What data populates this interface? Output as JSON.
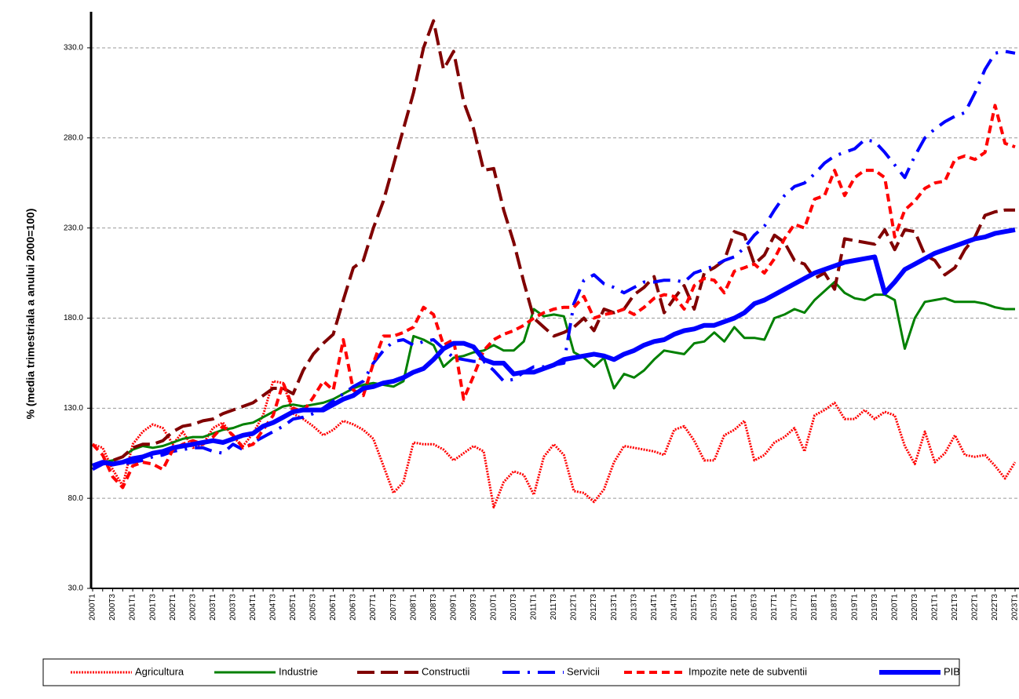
{
  "chart_data": {
    "type": "line",
    "ylabel": "% (media trimestriala a anului 2000=100)",
    "categories": [
      "2000T1",
      null,
      "2000T3",
      null,
      "2001T1",
      null,
      "2001T3",
      null,
      "2002T1",
      null,
      "2002T3",
      null,
      "2003T1",
      null,
      "2003T3",
      null,
      "2004T1",
      null,
      "2004T3",
      null,
      "2005T1",
      null,
      "2005T3",
      null,
      "2006T1",
      null,
      "2006T3",
      null,
      "2007T1",
      null,
      "2007T3",
      null,
      "2008T1",
      null,
      "2008T3",
      null,
      "2009T1",
      null,
      "2009T3",
      null,
      "2010T1",
      null,
      "2010T3",
      null,
      "2011T1",
      null,
      "2011T3",
      null,
      "2012T1",
      null,
      "2012T3",
      null,
      "2013T1",
      null,
      "2013T3",
      null,
      "2014T1",
      null,
      "2014T3",
      null,
      "2015T1",
      null,
      "2015T3",
      null,
      "2016T1",
      null,
      "2016T3",
      null,
      "2017T1",
      null,
      "2017T3",
      null,
      "2018T1",
      null,
      "2018T3",
      null,
      "2019T1",
      null,
      "2019T3",
      null,
      "2020T1",
      null,
      "2020T3",
      null,
      "2021T1",
      null,
      "2021T3",
      null,
      "2022T1",
      null,
      "2022T3",
      null,
      "2023T1"
    ],
    "series": [
      {
        "name": "Agricultura",
        "color": "#ff0000",
        "values": [
          110,
          108,
          96,
          87,
          110,
          117,
          121,
          119,
          110,
          117,
          108,
          110,
          119,
          122,
          114,
          109,
          116,
          126,
          145,
          144,
          127,
          124,
          120,
          115,
          118,
          123,
          121,
          118,
          113,
          98,
          83,
          89,
          111,
          110,
          110,
          107,
          101,
          105,
          109,
          106,
          75,
          89,
          95,
          93,
          82,
          103,
          110,
          104,
          84,
          83,
          78,
          85,
          100,
          109,
          108,
          107,
          106,
          104,
          118,
          120,
          112,
          101,
          101,
          115,
          118,
          123,
          101,
          104,
          111,
          114,
          119,
          106,
          126,
          129,
          133,
          124,
          124,
          129,
          124,
          128,
          126,
          109,
          99,
          117,
          100,
          105,
          115,
          104,
          103,
          104,
          98,
          91,
          100
        ]
      },
      {
        "name": "Industrie",
        "color": "#008000",
        "values": [
          98,
          100,
          101,
          103,
          107,
          109,
          108,
          109,
          111,
          113,
          114,
          114,
          116,
          118,
          119,
          121,
          122,
          125,
          128,
          131,
          132,
          131,
          132,
          133,
          135,
          138,
          141,
          143,
          144,
          143,
          142,
          145,
          170,
          168,
          165,
          153,
          158,
          159,
          161,
          162,
          165,
          162,
          162,
          167,
          185,
          181,
          182,
          181,
          161,
          158,
          153,
          158,
          141,
          149,
          147,
          151,
          157,
          162,
          161,
          160,
          166,
          167,
          172,
          167,
          175,
          169,
          169,
          168,
          180,
          182,
          185,
          183,
          190,
          195,
          200,
          194,
          191,
          190,
          193,
          193,
          190,
          163,
          180,
          189,
          190,
          191,
          189,
          189,
          189,
          188,
          186,
          185,
          185
        ]
      },
      {
        "name": "Constructii",
        "color": "#800000",
        "values": [
          96,
          100,
          101,
          103,
          108,
          110,
          110,
          112,
          117,
          120,
          121,
          123,
          124,
          127,
          129,
          131,
          133,
          137,
          141,
          141,
          138,
          151,
          160,
          166,
          171,
          190,
          208,
          212,
          230,
          245,
          265,
          285,
          305,
          330,
          345,
          318,
          328,
          300,
          285,
          262,
          263,
          240,
          222,
          200,
          180,
          175,
          170,
          172,
          175,
          180,
          173,
          185,
          183,
          185,
          193,
          197,
          203,
          183,
          191,
          198,
          185,
          205,
          208,
          212,
          228,
          226,
          210,
          215,
          226,
          222,
          212,
          210,
          202,
          205,
          196,
          224,
          223,
          222,
          221,
          229,
          218,
          229,
          228,
          215,
          212,
          204,
          208,
          218,
          225,
          237,
          239,
          240,
          240
        ]
      },
      {
        "name": "Servicii",
        "color": "#0000ff",
        "values": [
          96,
          99,
          100,
          99,
          100,
          101,
          103,
          104,
          106,
          107,
          108,
          108,
          106,
          105,
          110,
          107,
          111,
          114,
          117,
          120,
          124,
          125,
          127,
          130,
          134,
          138,
          142,
          145,
          155,
          162,
          167,
          168,
          165,
          167,
          168,
          163,
          158,
          157,
          156,
          156,
          151,
          145,
          146,
          150,
          153,
          153,
          154,
          155,
          188,
          201,
          204,
          199,
          197,
          194,
          197,
          200,
          200,
          201,
          201,
          200,
          205,
          207,
          209,
          212,
          214,
          219,
          226,
          231,
          240,
          248,
          253,
          255,
          260,
          266,
          270,
          272,
          274,
          279,
          278,
          272,
          265,
          258,
          270,
          280,
          285,
          289,
          292,
          294,
          305,
          318,
          327,
          328,
          327
        ]
      },
      {
        "name": "Impozite nete de subventii",
        "color": "#ff0000",
        "values": [
          110,
          104,
          92,
          86,
          98,
          100,
          99,
          96,
          107,
          110,
          112,
          110,
          114,
          120,
          115,
          108,
          110,
          118,
          126,
          144,
          130,
          128,
          136,
          145,
          140,
          168,
          140,
          137,
          155,
          170,
          170,
          172,
          175,
          186,
          182,
          165,
          168,
          135,
          148,
          162,
          168,
          171,
          173,
          176,
          180,
          183,
          185,
          186,
          186,
          192,
          180,
          182,
          183,
          185,
          182,
          186,
          191,
          193,
          192,
          185,
          198,
          202,
          201,
          194,
          206,
          208,
          210,
          205,
          213,
          224,
          232,
          230,
          246,
          248,
          262,
          248,
          258,
          262,
          262,
          258,
          225,
          240,
          245,
          252,
          255,
          256,
          268,
          270,
          268,
          272,
          298,
          277,
          275
        ]
      },
      {
        "name": "PIB",
        "color": "#0000ff",
        "values": [
          98,
          100,
          99,
          100,
          102,
          103,
          105,
          106,
          108,
          109,
          110,
          111,
          112,
          111,
          113,
          115,
          116,
          120,
          122,
          125,
          128,
          129,
          129,
          129,
          132,
          135,
          137,
          141,
          142,
          144,
          145,
          147,
          150,
          152,
          157,
          163,
          166,
          166,
          164,
          157,
          155,
          155,
          149,
          150,
          150,
          152,
          154,
          157,
          158,
          159,
          160,
          159,
          157,
          160,
          162,
          165,
          167,
          168,
          171,
          173,
          174,
          176,
          176,
          178,
          180,
          183,
          188,
          190,
          193,
          196,
          199,
          202,
          205,
          207,
          209,
          211,
          212,
          213,
          214,
          194,
          200,
          207,
          210,
          213,
          216,
          218,
          220,
          222,
          224,
          225,
          227,
          228,
          229
        ]
      }
    ],
    "ylim": [
      30,
      350
    ],
    "yticks": [
      {
        "value": 30,
        "label": "30.0"
      },
      {
        "value": 80,
        "label": "80.0"
      },
      {
        "value": 130,
        "label": "130.0"
      },
      {
        "value": 180,
        "label": "180.0"
      },
      {
        "value": 230,
        "label": "230.0"
      },
      {
        "value": 280,
        "label": "280.0"
      },
      {
        "value": 330,
        "label": "330.0"
      }
    ],
    "grid": true,
    "legend": "bottom"
  }
}
